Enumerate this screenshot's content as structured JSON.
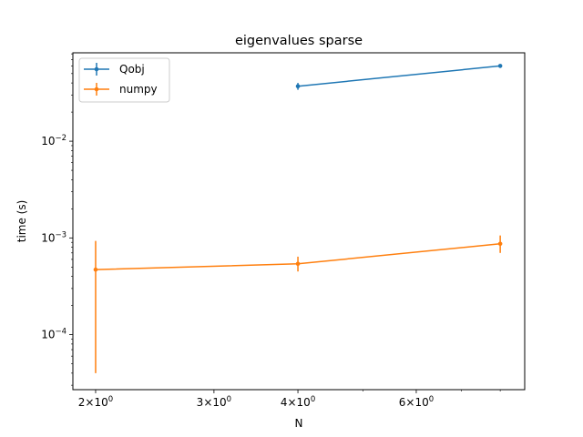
{
  "chart_data": {
    "type": "line",
    "title": "eigenvalues sparse",
    "xlabel": "N",
    "ylabel": "time (s)",
    "xscale": "log",
    "yscale": "log",
    "xlim": [
      1.85,
      8.7
    ],
    "ylim": [
      2.7e-05,
      0.082
    ],
    "x_tick_labels": [
      {
        "value": 2,
        "base": "2",
        "sep": "×",
        "pow": "10",
        "exp": "0"
      },
      {
        "value": 3,
        "base": "3",
        "sep": "×",
        "pow": "10",
        "exp": "0"
      },
      {
        "value": 4,
        "base": "4",
        "sep": "×",
        "pow": "10",
        "exp": "0"
      },
      {
        "value": 6,
        "base": "6",
        "sep": "×",
        "pow": "10",
        "exp": "0"
      }
    ],
    "x_minor_ticks": [
      5,
      7,
      8
    ],
    "y_tick_labels": [
      {
        "value": 0.0001,
        "base": "10",
        "exp": "−4"
      },
      {
        "value": 0.001,
        "base": "10",
        "exp": "−3"
      },
      {
        "value": 0.01,
        "base": "10",
        "exp": "−2"
      }
    ],
    "grid": false,
    "legend": "upper-left",
    "series": [
      {
        "name": "Qobj",
        "color": "#1f77b4",
        "x": [
          4,
          8
        ],
        "y": [
          0.037,
          0.06
        ],
        "yerr_low": [
          0.034,
          0.058
        ],
        "yerr_high": [
          0.04,
          0.062
        ]
      },
      {
        "name": "numpy",
        "color": "#ff7f0e",
        "x": [
          2,
          4,
          8
        ],
        "y": [
          0.00047,
          0.00054,
          0.00087
        ],
        "yerr_low": [
          4e-05,
          0.00045,
          0.0007
        ],
        "yerr_high": [
          0.00093,
          0.00064,
          0.00106
        ]
      }
    ]
  }
}
